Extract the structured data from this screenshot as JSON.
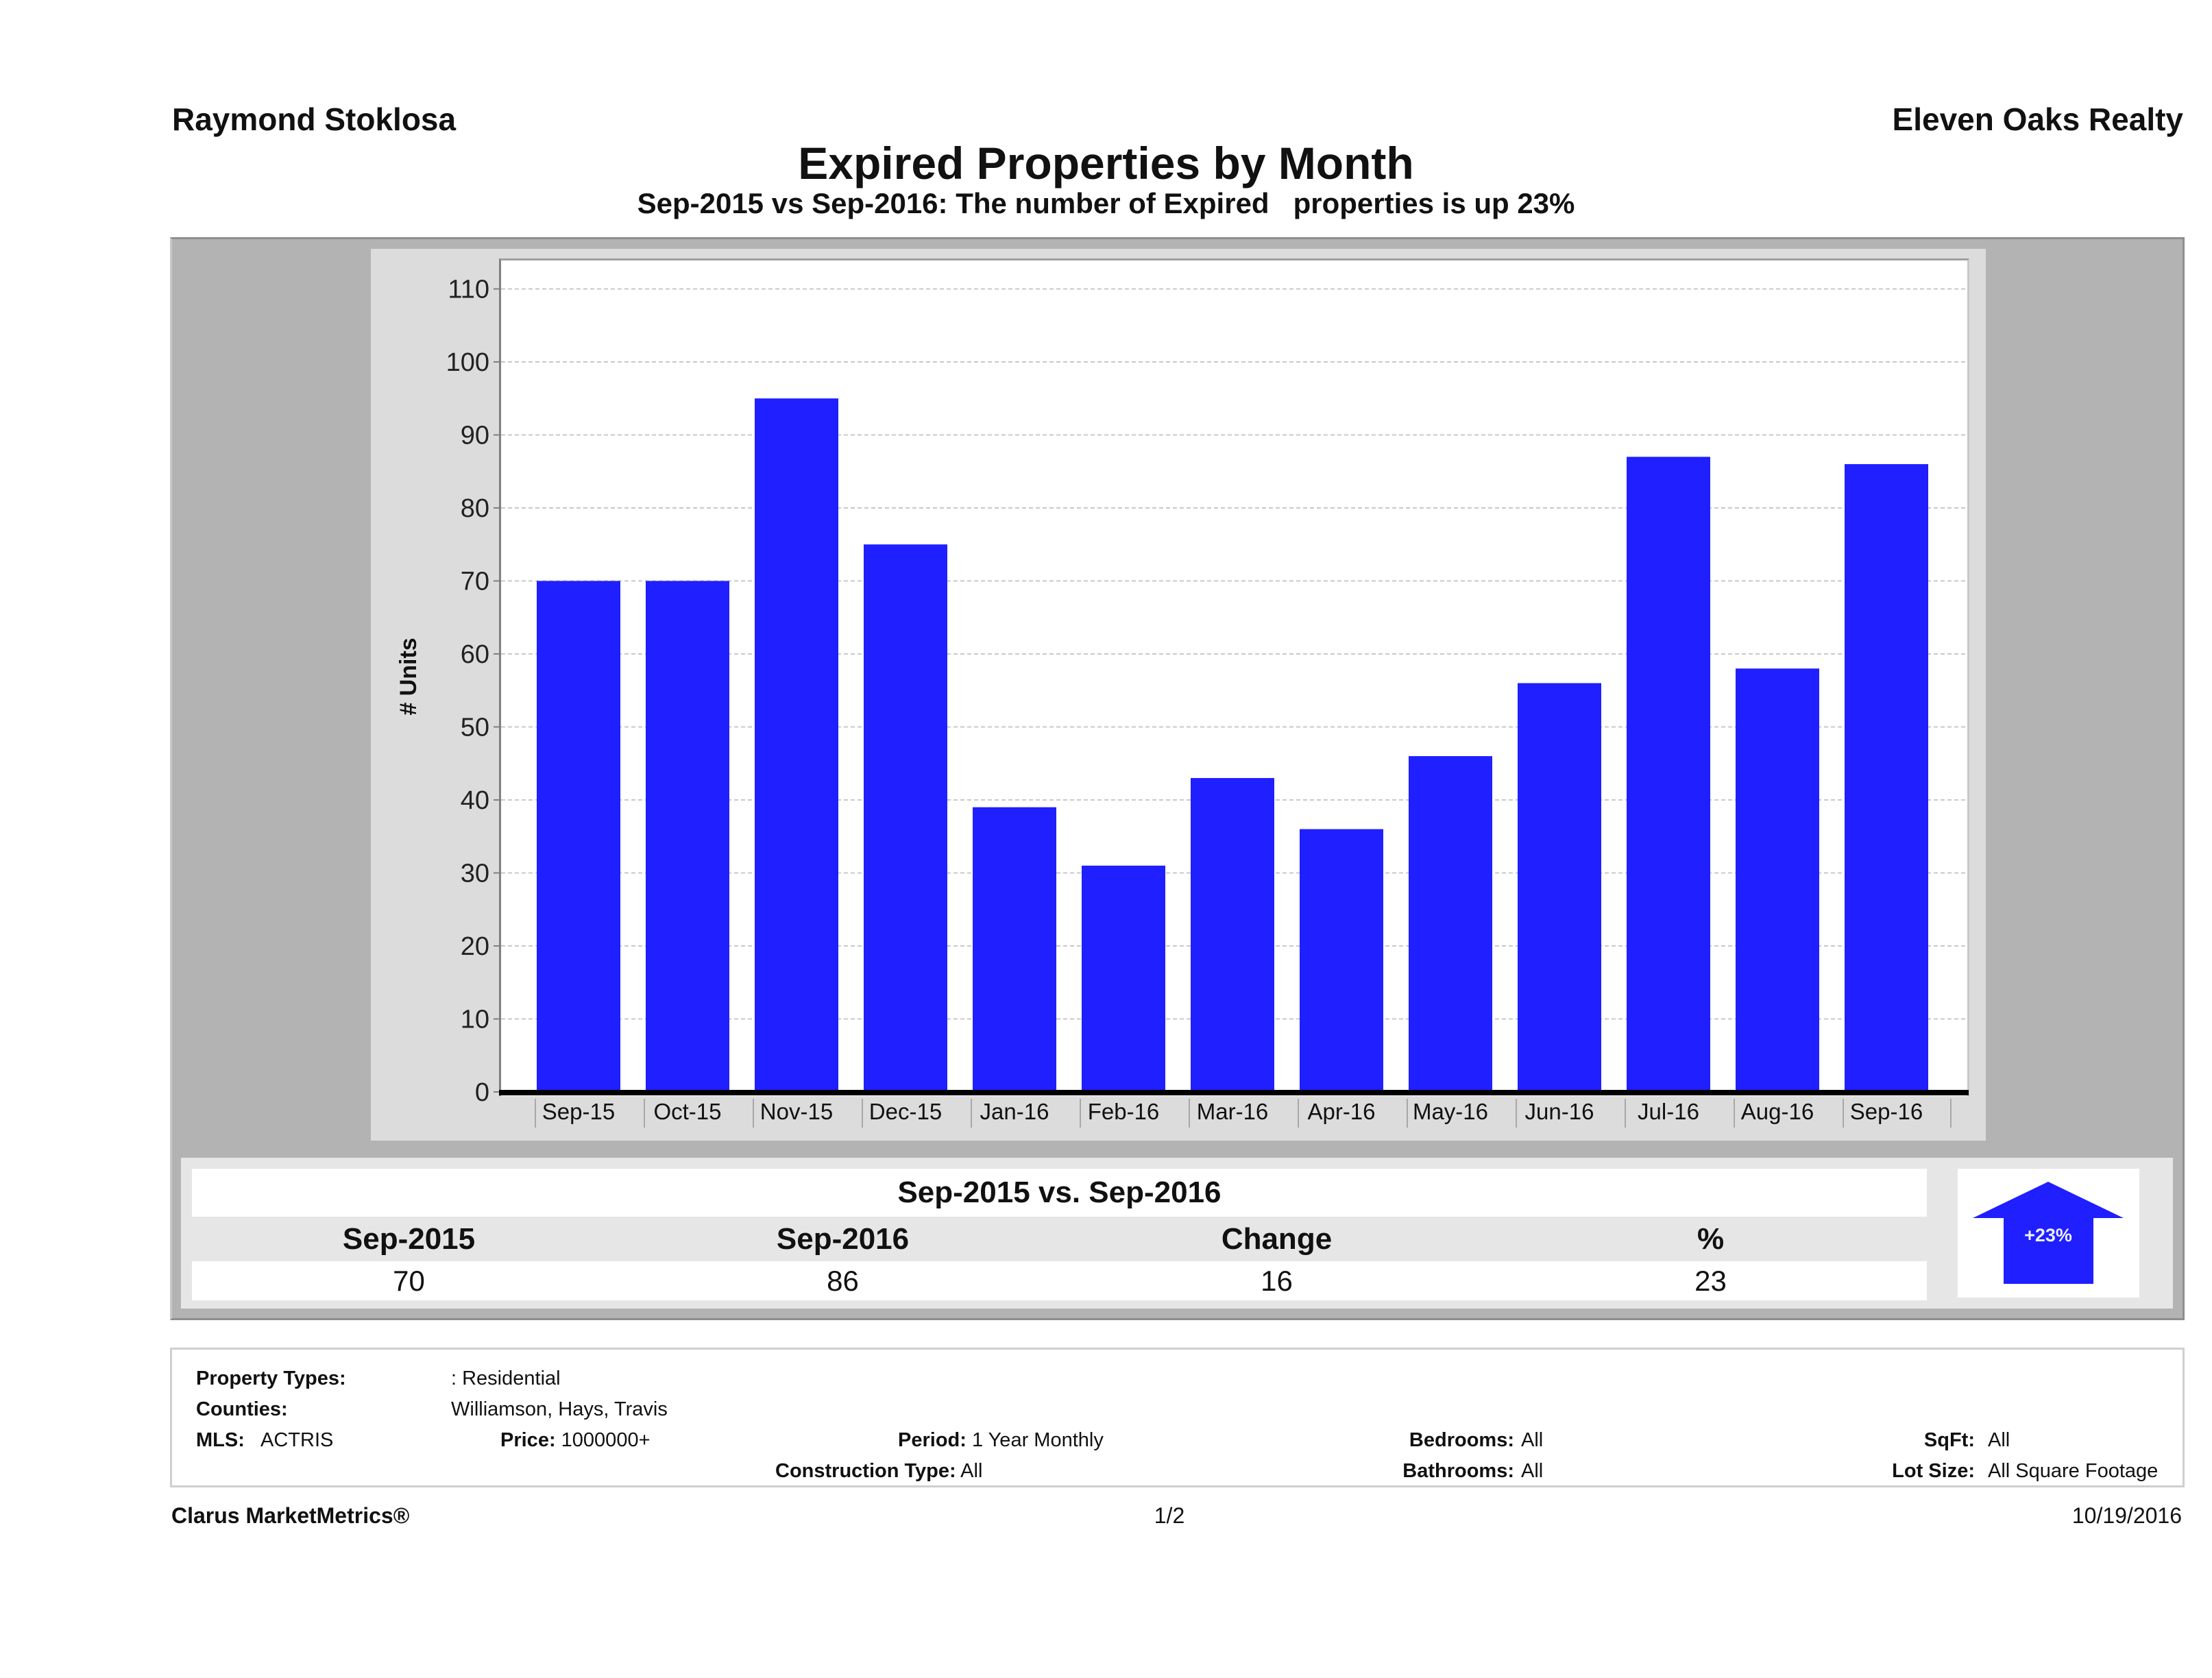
{
  "header": {
    "agent_name": "Raymond Stoklosa",
    "brokerage": "Eleven Oaks Realty",
    "title": "Expired Properties by Month",
    "subtitle": "Sep-2015 vs Sep-2016: The number of Expired   properties is up 23%"
  },
  "chart_data": {
    "type": "bar",
    "title": "Expired Properties by Month",
    "xlabel": "",
    "ylabel": "# Units",
    "categories": [
      "Sep-15",
      "Oct-15",
      "Nov-15",
      "Dec-15",
      "Jan-16",
      "Feb-16",
      "Mar-16",
      "Apr-16",
      "May-16",
      "Jun-16",
      "Jul-16",
      "Aug-16",
      "Sep-16"
    ],
    "values": [
      70,
      70,
      95,
      75,
      39,
      31,
      43,
      36,
      46,
      56,
      87,
      58,
      86
    ],
    "ylim": [
      0,
      113
    ],
    "yticks": [
      0,
      10,
      20,
      30,
      40,
      50,
      60,
      70,
      80,
      90,
      100,
      110
    ],
    "grid": true,
    "legend": "none",
    "bar_color": "#1f1fff"
  },
  "summary": {
    "title": "Sep-2015 vs. Sep-2016",
    "columns": [
      "Sep-2015",
      "Sep-2016",
      "Change",
      "%"
    ],
    "values": [
      "70",
      "86",
      "16",
      "23"
    ],
    "badge": "+23%",
    "badge_direction": "up",
    "badge_color": "#1f1fff"
  },
  "criteria": {
    "property_types_label": "Property Types:",
    "property_types_value": ": Residential",
    "counties_label": "Counties:",
    "counties_value": "Williamson, Hays, Travis",
    "mls_label": "MLS:",
    "mls_value": "ACTRIS",
    "price_label": "Price:",
    "price_value": "1000000+",
    "period_label": "Period:",
    "period_value": "1 Year Monthly",
    "construction_label": "Construction Type:",
    "construction_value": "All",
    "bedrooms_label": "Bedrooms:",
    "bedrooms_value": "All",
    "bathrooms_label": "Bathrooms:",
    "bathrooms_value": "All",
    "sqft_label": "SqFt:",
    "sqft_value": "All",
    "lotsize_label": "Lot Size:",
    "lotsize_value": "All Square Footage"
  },
  "footer": {
    "product": "Clarus MarketMetrics®",
    "page": "1/2",
    "date": "10/19/2016"
  }
}
